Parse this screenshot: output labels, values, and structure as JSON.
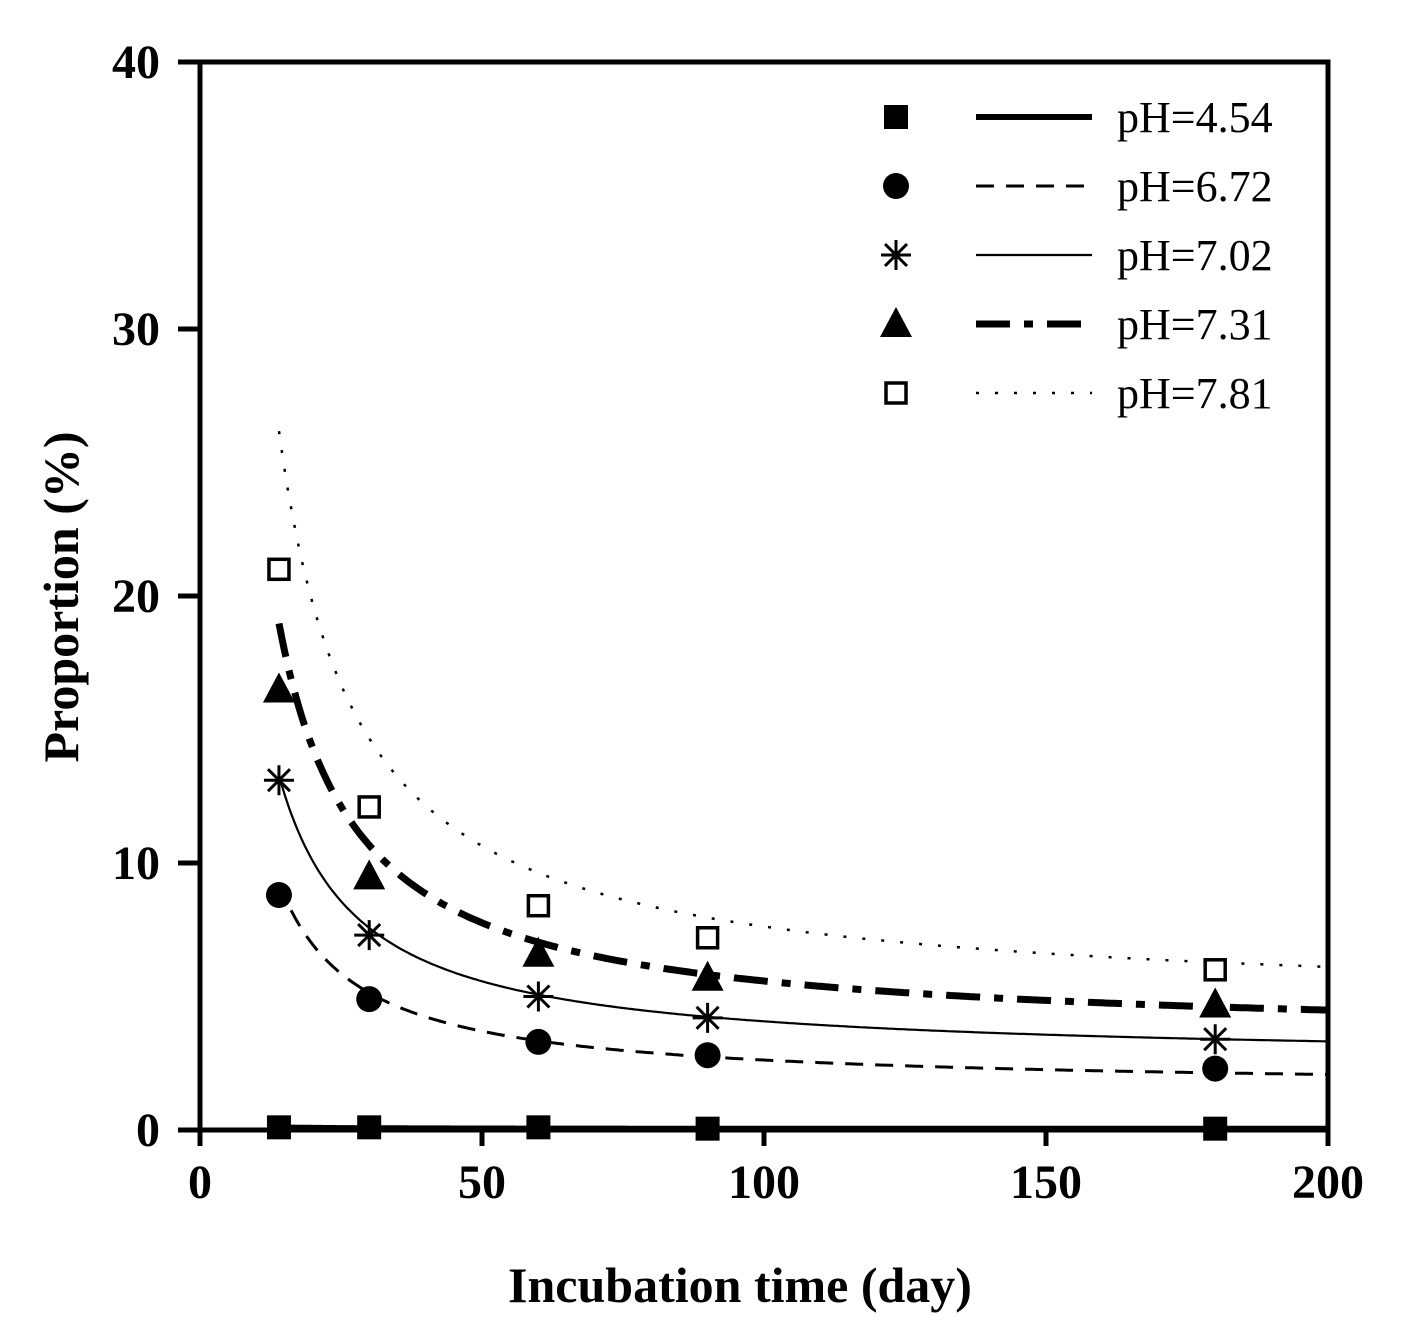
{
  "chart_data": {
    "type": "scatter",
    "title": "",
    "xlabel": "Incubation time (day)",
    "ylabel": "Proportion (%)",
    "xlim": [
      0,
      200
    ],
    "ylim": [
      0,
      40
    ],
    "xticks": [
      0,
      50,
      100,
      150,
      200
    ],
    "yticks": [
      0,
      10,
      20,
      30,
      40
    ],
    "grid": false,
    "legend_position": "top-right",
    "series": [
      {
        "name": "pH=4.54",
        "marker": "filled-square",
        "line_style": "solid-thick",
        "x": [
          14,
          30,
          60,
          90,
          180
        ],
        "y": [
          0.1,
          0.1,
          0.1,
          0.05,
          0.05
        ],
        "fit": {
          "a": 0.04,
          "b": 0.8
        }
      },
      {
        "name": "pH=6.72",
        "marker": "filled-circle",
        "line_style": "dashed",
        "x": [
          14,
          30,
          60,
          90,
          180
        ],
        "y": [
          8.8,
          4.9,
          3.3,
          2.8,
          2.3
        ],
        "fit": {
          "a": 1.54,
          "b": 108
        }
      },
      {
        "name": "pH=7.02",
        "marker": "asterisk",
        "line_style": "solid-thin",
        "x": [
          14,
          30,
          60,
          90,
          180
        ],
        "y": [
          13.1,
          7.3,
          5.0,
          4.2,
          3.4
        ],
        "fit": {
          "a": 2.57,
          "b": 150
        }
      },
      {
        "name": "pH=7.31",
        "marker": "filled-triangle",
        "line_style": "dash-dot-thick",
        "x": [
          14,
          30,
          60,
          90,
          180
        ],
        "y": [
          16.5,
          9.5,
          6.6,
          5.7,
          4.7
        ],
        "fit": {
          "a": 3.4,
          "b": 218
        }
      },
      {
        "name": "pH=7.81",
        "marker": "open-square",
        "line_style": "dotted",
        "x": [
          14,
          30,
          60,
          90,
          180
        ],
        "y": [
          21.0,
          12.1,
          8.4,
          7.2,
          6.0
        ],
        "fit": {
          "a": 4.6,
          "b": 302
        }
      }
    ]
  }
}
